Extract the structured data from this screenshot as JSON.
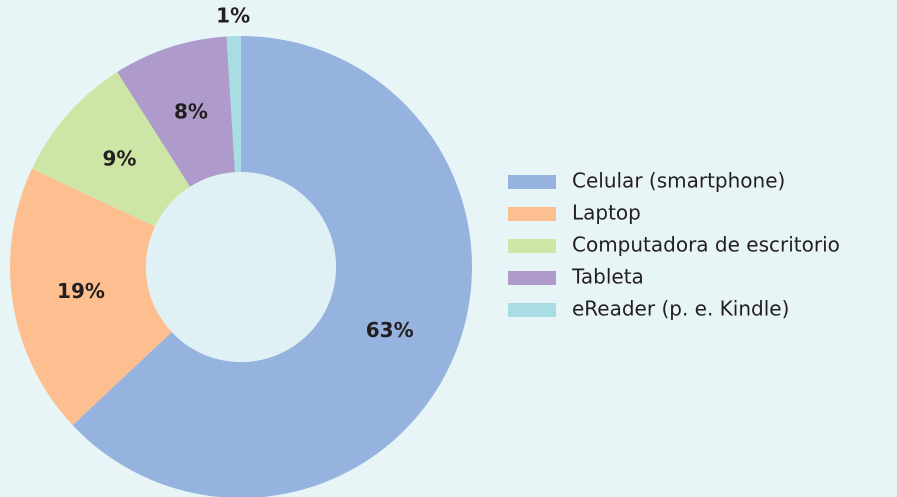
{
  "chart_data": {
    "type": "donut",
    "categories": [
      "Celular (smartphone)",
      "Laptop",
      "Computadora de escritorio",
      "Tableta",
      "eReader (p. e. Kindle)"
    ],
    "values": [
      63,
      19,
      9,
      8,
      1
    ],
    "value_labels": [
      "63%",
      "19%",
      "9%",
      "8%",
      "1%"
    ],
    "colors": [
      "#95b3de",
      "#fdbf8f",
      "#cde6a6",
      "#ae9acb",
      "#a8dde4"
    ],
    "legend": "right"
  }
}
